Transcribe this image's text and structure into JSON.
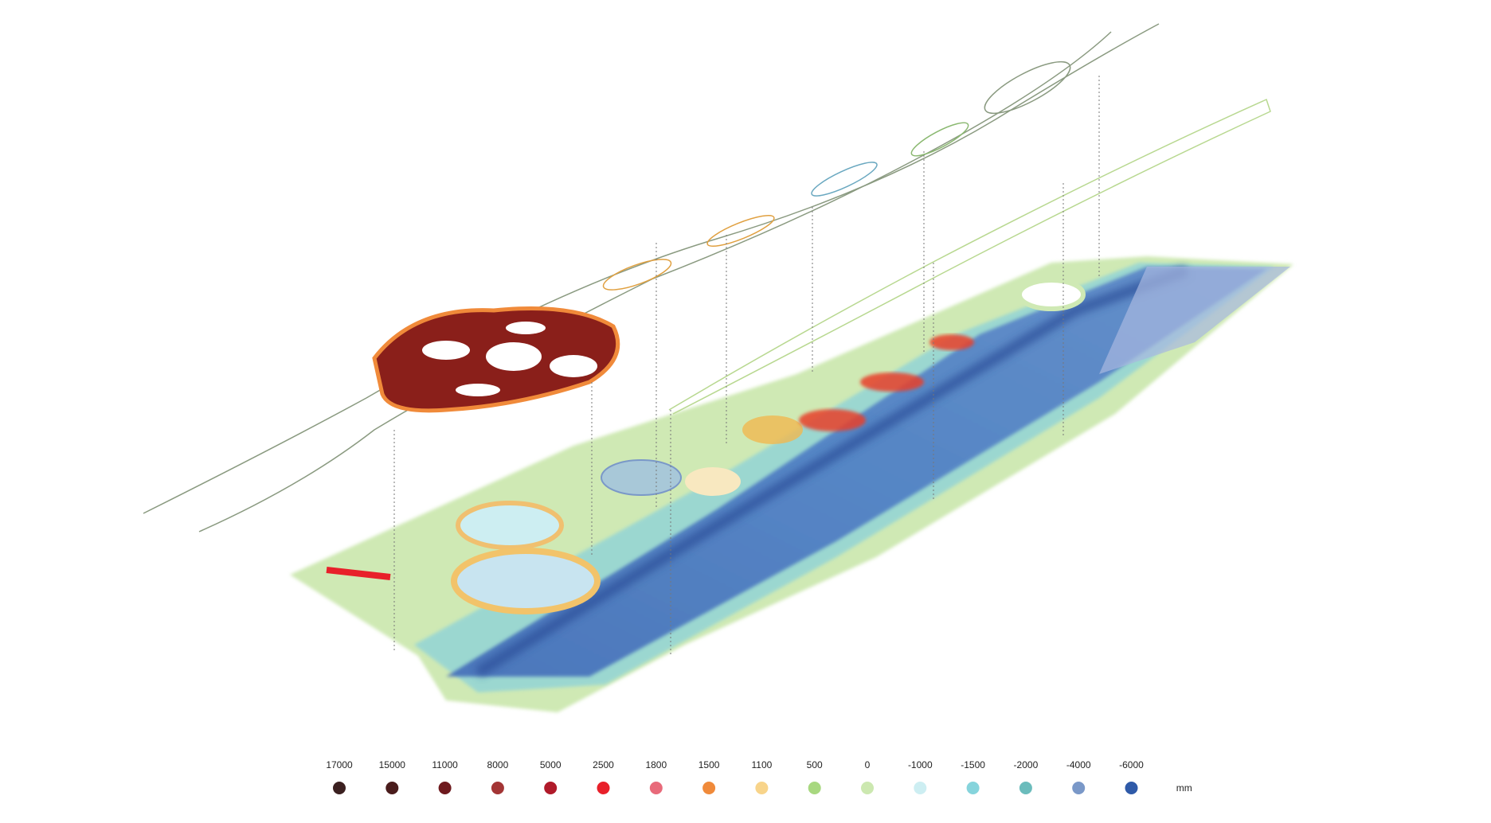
{
  "legend": {
    "items": [
      {
        "label": "17000",
        "color": "#3b2020"
      },
      {
        "label": "15000",
        "color": "#4a1c1c"
      },
      {
        "label": "11000",
        "color": "#6e1a1e"
      },
      {
        "label": "8000",
        "color": "#a33535"
      },
      {
        "label": "5000",
        "color": "#b01a2a"
      },
      {
        "label": "2500",
        "color": "#e8202a"
      },
      {
        "label": "1800",
        "color": "#e86a7a"
      },
      {
        "label": "1500",
        "color": "#f08a3a"
      },
      {
        "label": "1100",
        "color": "#f8d48a"
      },
      {
        "label": "500",
        "color": "#a8d880"
      },
      {
        "label": "0",
        "color": "#cce8b0"
      },
      {
        "label": "-1000",
        "color": "#cdeef2"
      },
      {
        "label": "-1500",
        "color": "#86d4dc"
      },
      {
        "label": "-2000",
        "color": "#6bbcbc"
      },
      {
        "label": "-4000",
        "color": "#7a98c8"
      },
      {
        "label": "-6000",
        "color": "#2f5aa8"
      }
    ],
    "unit": "mm"
  }
}
